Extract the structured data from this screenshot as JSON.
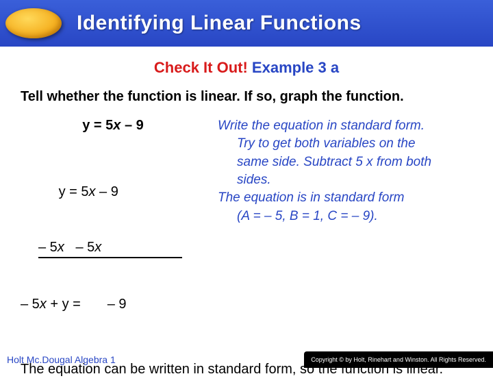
{
  "header": {
    "title": "Identifying Linear Functions",
    "title_color": "#ffffff",
    "bar_gradient_top": "#3a5fd9",
    "bar_gradient_bottom": "#2846c4"
  },
  "checkitout": {
    "red_text": "Check It Out!",
    "blue_text": "Example 3 a",
    "red_color": "#d81b1b",
    "blue_color": "#2846c4"
  },
  "prompt": "Tell whether the function is linear. If so, graph the function.",
  "equation_main_pre": "y = 5",
  "equation_main_var": "x",
  "equation_main_post": " – 9",
  "work": {
    "line1_a": "          y = 5",
    "line1_b": "x",
    "line1_c": " – 9",
    "line2_a": "– 5",
    "line2_b": "x",
    "line2_c": "   – 5",
    "line2_d": "x",
    "line3_a": "– 5",
    "line3_b": "x",
    "line3_c": " + y =       – 9"
  },
  "explain": {
    "p1": "Write the equation in standard form.",
    "p2": "Try to get both variables on the",
    "p3": "same side. Subtract 5 x from both",
    "p4": "sides.",
    "p5": "The equation is in standard form",
    "p6": "(A = – 5, B = 1, C = – 9).",
    "color": "#2846c4"
  },
  "conclusion": "The equation can be written in standard form, so the function is linear.",
  "footer": {
    "left": "Holt Mc.Dougal Algebra 1",
    "right": "Copyright © by Holt, Rinehart and Winston. All Rights Reserved."
  }
}
